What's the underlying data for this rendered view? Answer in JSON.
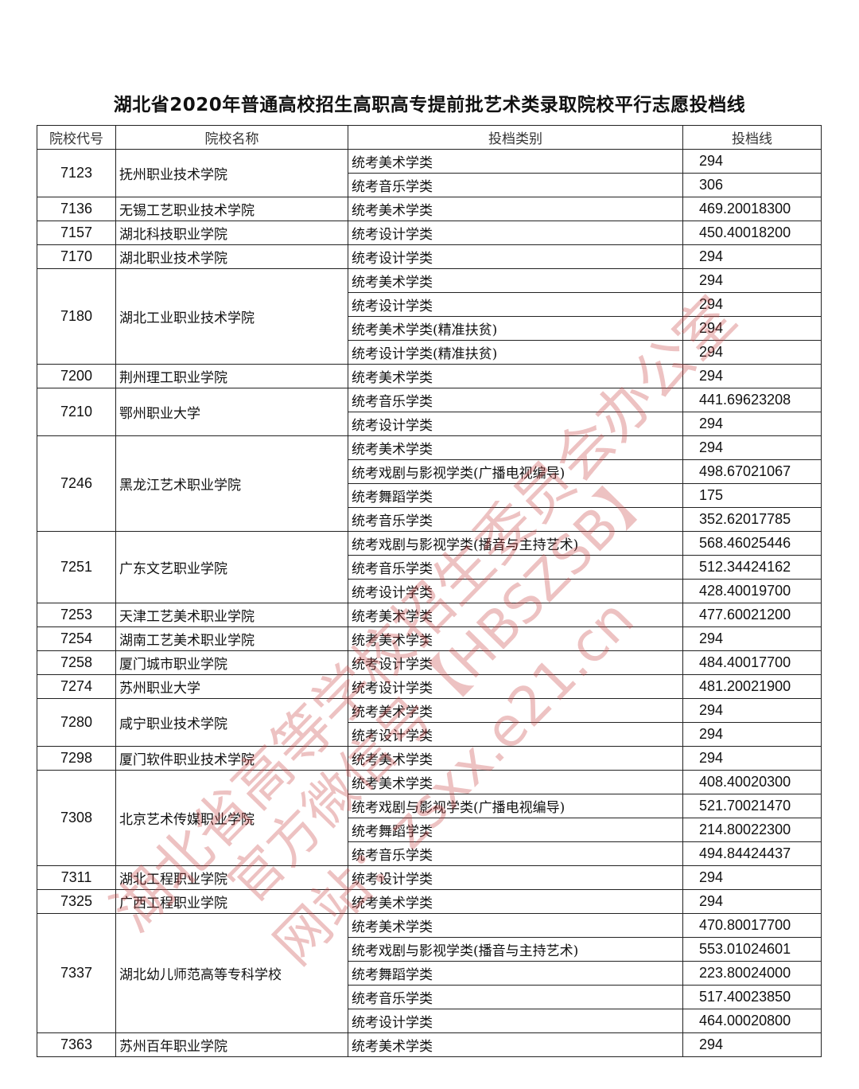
{
  "title": "湖北省2020年普通高校招生高职高专提前批艺术类录取院校平行志愿投档线",
  "columns": [
    "院校代号",
    "院校名称",
    "投档类别",
    "投档线"
  ],
  "schools": [
    {
      "code": "7123",
      "name": "抚州职业技术学院",
      "rows": [
        [
          "统考美术学类",
          "294"
        ],
        [
          "统考音乐学类",
          "306"
        ]
      ]
    },
    {
      "code": "7136",
      "name": "无锡工艺职业技术学院",
      "rows": [
        [
          "统考美术学类",
          "469.20018300"
        ]
      ]
    },
    {
      "code": "7157",
      "name": "湖北科技职业学院",
      "rows": [
        [
          "统考设计学类",
          "450.40018200"
        ]
      ]
    },
    {
      "code": "7170",
      "name": "湖北职业技术学院",
      "rows": [
        [
          "统考设计学类",
          "294"
        ]
      ]
    },
    {
      "code": "7180",
      "name": "湖北工业职业技术学院",
      "rows": [
        [
          "统考美术学类",
          "294"
        ],
        [
          "统考设计学类",
          "294"
        ],
        [
          "统考美术学类(精准扶贫)",
          "294"
        ],
        [
          "统考设计学类(精准扶贫)",
          "294"
        ]
      ]
    },
    {
      "code": "7200",
      "name": "荆州理工职业学院",
      "rows": [
        [
          "统考美术学类",
          "294"
        ]
      ]
    },
    {
      "code": "7210",
      "name": "鄂州职业大学",
      "rows": [
        [
          "统考音乐学类",
          "441.69623208"
        ],
        [
          "统考设计学类",
          "294"
        ]
      ]
    },
    {
      "code": "7246",
      "name": "黑龙江艺术职业学院",
      "rows": [
        [
          "统考美术学类",
          "294"
        ],
        [
          "统考戏剧与影视学类(广播电视编导)",
          "498.67021067"
        ],
        [
          "统考舞蹈学类",
          "175"
        ],
        [
          "统考音乐学类",
          "352.62017785"
        ]
      ]
    },
    {
      "code": "7251",
      "name": "广东文艺职业学院",
      "rows": [
        [
          "统考戏剧与影视学类(播音与主持艺术)",
          "568.46025446"
        ],
        [
          "统考音乐学类",
          "512.34424162"
        ],
        [
          "统考设计学类",
          "428.40019700"
        ]
      ]
    },
    {
      "code": "7253",
      "name": "天津工艺美术职业学院",
      "rows": [
        [
          "统考美术学类",
          "477.60021200"
        ]
      ]
    },
    {
      "code": "7254",
      "name": "湖南工艺美术职业学院",
      "rows": [
        [
          "统考美术学类",
          "294"
        ]
      ]
    },
    {
      "code": "7258",
      "name": "厦门城市职业学院",
      "rows": [
        [
          "统考设计学类",
          "484.40017700"
        ]
      ]
    },
    {
      "code": "7274",
      "name": "苏州职业大学",
      "rows": [
        [
          "统考设计学类",
          "481.20021900"
        ]
      ]
    },
    {
      "code": "7280",
      "name": "咸宁职业技术学院",
      "rows": [
        [
          "统考美术学类",
          "294"
        ],
        [
          "统考设计学类",
          "294"
        ]
      ]
    },
    {
      "code": "7298",
      "name": "厦门软件职业技术学院",
      "rows": [
        [
          "统考美术学类",
          "294"
        ]
      ]
    },
    {
      "code": "7308",
      "name": "北京艺术传媒职业学院",
      "rows": [
        [
          "统考美术学类",
          "408.40020300"
        ],
        [
          "统考戏剧与影视学类(广播电视编导)",
          "521.70021470"
        ],
        [
          "统考舞蹈学类",
          "214.80022300"
        ],
        [
          "统考音乐学类",
          "494.84424437"
        ]
      ]
    },
    {
      "code": "7311",
      "name": "湖北工程职业学院",
      "rows": [
        [
          "统考设计学类",
          "294"
        ]
      ]
    },
    {
      "code": "7325",
      "name": "广西工程职业学院",
      "rows": [
        [
          "统考美术学类",
          "294"
        ]
      ]
    },
    {
      "code": "7337",
      "name": "湖北幼儿师范高等专科学校",
      "rows": [
        [
          "统考美术学类",
          "470.80017700"
        ],
        [
          "统考戏剧与影视学类(播音与主持艺术)",
          "553.01024601"
        ],
        [
          "统考舞蹈学类",
          "223.80024000"
        ],
        [
          "统考音乐学类",
          "517.40023850"
        ],
        [
          "统考设计学类",
          "464.00020800"
        ]
      ]
    },
    {
      "code": "7363",
      "name": "苏州百年职业学院",
      "rows": [
        [
          "统考美术学类",
          "294"
        ]
      ]
    }
  ],
  "watermark": [
    "湖北省高等学校招生委员会办公室",
    "官方微信号【HBSZSB】",
    "网站：zsxx.e21.cn"
  ],
  "watermark_color": "#c84646"
}
